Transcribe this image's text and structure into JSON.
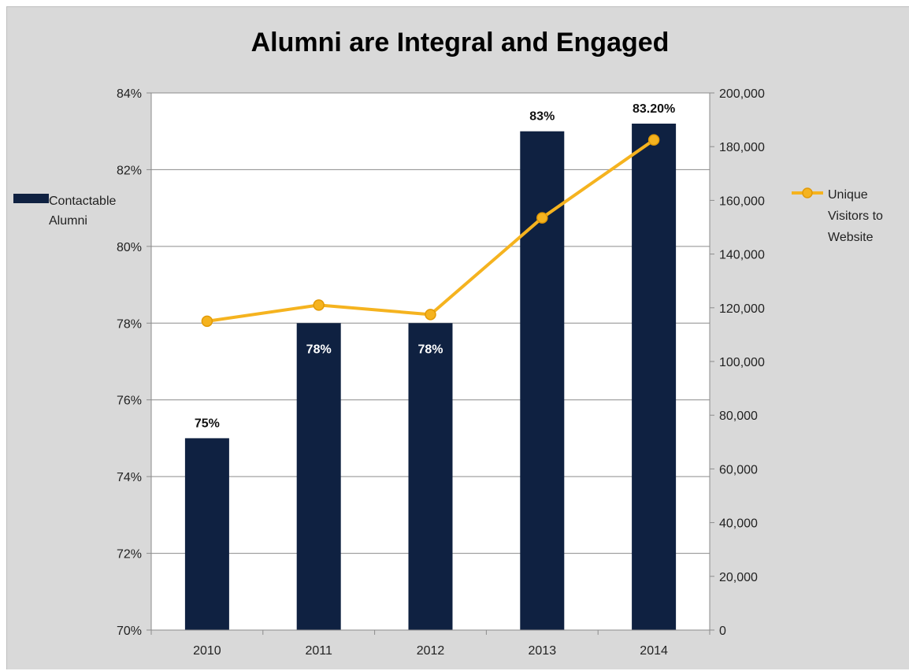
{
  "chart_data": {
    "type": "bar",
    "title": "Alumni are Integral and Engaged",
    "categories": [
      "2010",
      "2011",
      "2012",
      "2013",
      "2014"
    ],
    "series": [
      {
        "name": "Contactable Alumni",
        "type": "bar",
        "axis": "left",
        "values": [
          75,
          78,
          78,
          83,
          83.2
        ],
        "data_labels": [
          "75%",
          "78%",
          "78%",
          "83%",
          "83.20%"
        ],
        "color": "#0f2141"
      },
      {
        "name": "Unique Visitors to Website",
        "type": "line",
        "axis": "right",
        "values": [
          115000,
          121000,
          117500,
          153500,
          182500
        ],
        "color": "#f5b31f"
      }
    ],
    "y_left": {
      "min": 70,
      "max": 84,
      "ticks": [
        70,
        72,
        74,
        76,
        78,
        80,
        82,
        84
      ],
      "tick_labels": [
        "70%",
        "72%",
        "74%",
        "76%",
        "78%",
        "80%",
        "82%",
        "84%"
      ]
    },
    "y_right": {
      "min": 0,
      "max": 200000,
      "ticks": [
        0,
        20000,
        40000,
        60000,
        80000,
        100000,
        120000,
        140000,
        160000,
        180000,
        200000
      ],
      "tick_labels": [
        "0",
        "20,000",
        "40,000",
        "60,000",
        "80,000",
        "100,000",
        "120,000",
        "140,000",
        "160,000",
        "180,000",
        "200,000"
      ]
    },
    "legend": [
      {
        "label_lines": [
          "Contactable",
          "Alumni"
        ],
        "position": "left"
      },
      {
        "label_lines": [
          "Unique",
          "Visitors to",
          "Website"
        ],
        "position": "right"
      }
    ],
    "grid": true
  }
}
